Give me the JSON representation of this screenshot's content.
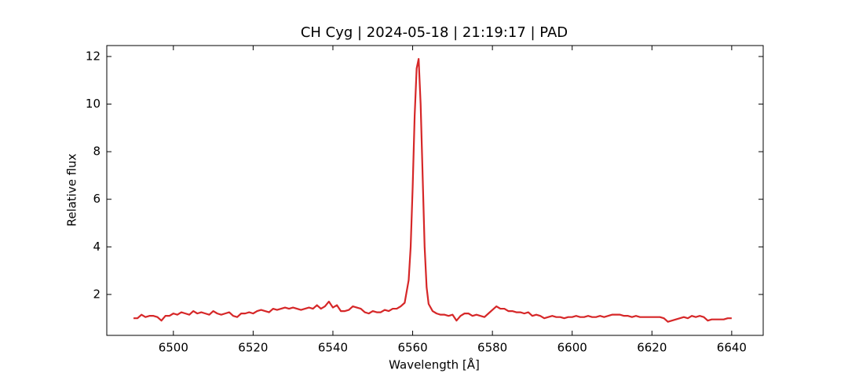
{
  "chart_data": {
    "type": "line",
    "title": "CH Cyg | 2024-05-18 | 21:19:17 | PAD",
    "x_label": "Wavelength [Å]",
    "y_label": "Relative flux",
    "xlim": [
      6483.3,
      6647.9
    ],
    "ylim": [
      0.28,
      12.46
    ],
    "xticks": [
      6500,
      6520,
      6540,
      6560,
      6580,
      6600,
      6620,
      6640
    ],
    "yticks": [
      2,
      4,
      6,
      8,
      10,
      12
    ],
    "ticks_direction": "in",
    "x": [
      6490,
      6491,
      6492,
      6493,
      6494,
      6495,
      6496,
      6497,
      6498,
      6499,
      6500,
      6501,
      6502,
      6503,
      6504,
      6505,
      6506,
      6507,
      6508,
      6509,
      6510,
      6511,
      6512,
      6513,
      6514,
      6515,
      6516,
      6517,
      6518,
      6519,
      6520,
      6521,
      6522,
      6523,
      6524,
      6525,
      6526,
      6527,
      6528,
      6529,
      6530,
      6531,
      6532,
      6533,
      6534,
      6535,
      6536,
      6537,
      6538,
      6539,
      6540,
      6541,
      6542,
      6543,
      6544,
      6545,
      6546,
      6547,
      6548,
      6549,
      6550,
      6551,
      6552,
      6553,
      6554,
      6555,
      6556,
      6557,
      6558,
      6559,
      6559.5,
      6560,
      6560.5,
      6561,
      6561.5,
      6562,
      6562.5,
      6563,
      6563.5,
      6564,
      6565,
      6566,
      6567,
      6568,
      6569,
      6570,
      6571,
      6572,
      6573,
      6574,
      6575,
      6576,
      6577,
      6578,
      6579,
      6580,
      6581,
      6582,
      6583,
      6584,
      6585,
      6586,
      6587,
      6588,
      6589,
      6590,
      6591,
      6592,
      6593,
      6594,
      6595,
      6596,
      6597,
      6598,
      6599,
      6600,
      6601,
      6602,
      6603,
      6604,
      6605,
      6606,
      6607,
      6608,
      6609,
      6610,
      6611,
      6612,
      6613,
      6614,
      6615,
      6616,
      6617,
      6618,
      6619,
      6620,
      6621,
      6622,
      6623,
      6624,
      6625,
      6626,
      6627,
      6628,
      6629,
      6630,
      6631,
      6632,
      6633,
      6634,
      6635,
      6636,
      6637,
      6638,
      6639,
      6640
    ],
    "series": [
      {
        "color": "#d62728",
        "values": [
          1.0,
          1.0,
          1.15,
          1.05,
          1.1,
          1.1,
          1.05,
          0.9,
          1.1,
          1.1,
          1.2,
          1.15,
          1.25,
          1.2,
          1.15,
          1.3,
          1.2,
          1.25,
          1.2,
          1.15,
          1.3,
          1.2,
          1.15,
          1.2,
          1.25,
          1.1,
          1.05,
          1.2,
          1.2,
          1.25,
          1.2,
          1.3,
          1.35,
          1.3,
          1.25,
          1.4,
          1.35,
          1.4,
          1.45,
          1.4,
          1.45,
          1.4,
          1.35,
          1.4,
          1.45,
          1.4,
          1.55,
          1.4,
          1.5,
          1.7,
          1.45,
          1.55,
          1.3,
          1.3,
          1.35,
          1.5,
          1.45,
          1.4,
          1.25,
          1.2,
          1.3,
          1.25,
          1.25,
          1.35,
          1.3,
          1.4,
          1.4,
          1.5,
          1.65,
          2.6,
          4.0,
          6.5,
          9.5,
          11.5,
          11.9,
          10.0,
          7.0,
          4.0,
          2.3,
          1.6,
          1.3,
          1.2,
          1.15,
          1.15,
          1.1,
          1.15,
          0.9,
          1.1,
          1.2,
          1.2,
          1.1,
          1.15,
          1.1,
          1.05,
          1.2,
          1.35,
          1.5,
          1.4,
          1.4,
          1.3,
          1.3,
          1.25,
          1.25,
          1.2,
          1.25,
          1.1,
          1.15,
          1.1,
          1.0,
          1.05,
          1.1,
          1.05,
          1.05,
          1.0,
          1.05,
          1.05,
          1.1,
          1.05,
          1.05,
          1.1,
          1.05,
          1.05,
          1.1,
          1.05,
          1.1,
          1.15,
          1.15,
          1.15,
          1.1,
          1.1,
          1.05,
          1.1,
          1.05,
          1.05,
          1.05,
          1.05,
          1.05,
          1.05,
          1.0,
          0.85,
          0.9,
          0.95,
          1.0,
          1.05,
          1.0,
          1.1,
          1.05,
          1.1,
          1.05,
          0.9,
          0.95,
          0.95,
          0.95,
          0.95,
          1.0,
          1.0
        ]
      }
    ]
  }
}
